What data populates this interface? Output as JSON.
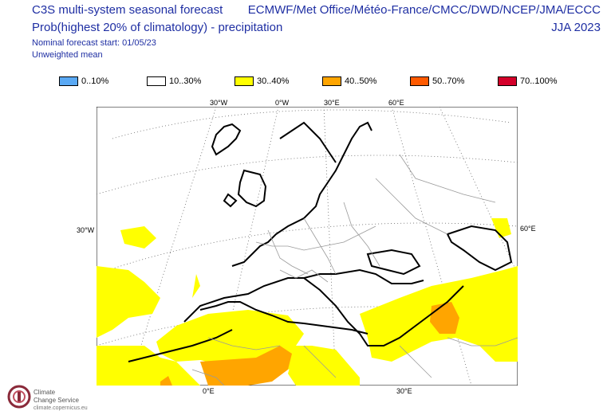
{
  "header": {
    "title": "C3S multi-system seasonal forecast",
    "subtitle": "Prob(highest 20% of climatology) - precipitation",
    "forecast_start": "Nominal forecast start: 01/05/23",
    "weighting": "Unweighted mean",
    "centres": "ECMWF/Met Office/Météo-France/CMCC/DWD/NCEP/JMA/ECCC",
    "season": "JJA 2023"
  },
  "legend": {
    "items": [
      {
        "label": "0..10%",
        "color": "#5aa9f4"
      },
      {
        "label": "10..30%",
        "color": "#ffffff"
      },
      {
        "label": "30..40%",
        "color": "#ffff00"
      },
      {
        "label": "40..50%",
        "color": "#ffa500"
      },
      {
        "label": "50..70%",
        "color": "#ff5a00"
      },
      {
        "label": "70..100%",
        "color": "#d4002a"
      }
    ]
  },
  "map": {
    "projection_labels": {
      "top": [
        "30°W",
        "0°W",
        "30°E",
        "60°E"
      ],
      "left": "30°W",
      "right": "60°E",
      "bottom": [
        "0°E",
        "30°E"
      ]
    }
  },
  "logo": {
    "name_line1": "Climate",
    "name_line2": "Change Service",
    "url": "climate.copernicus.eu"
  }
}
